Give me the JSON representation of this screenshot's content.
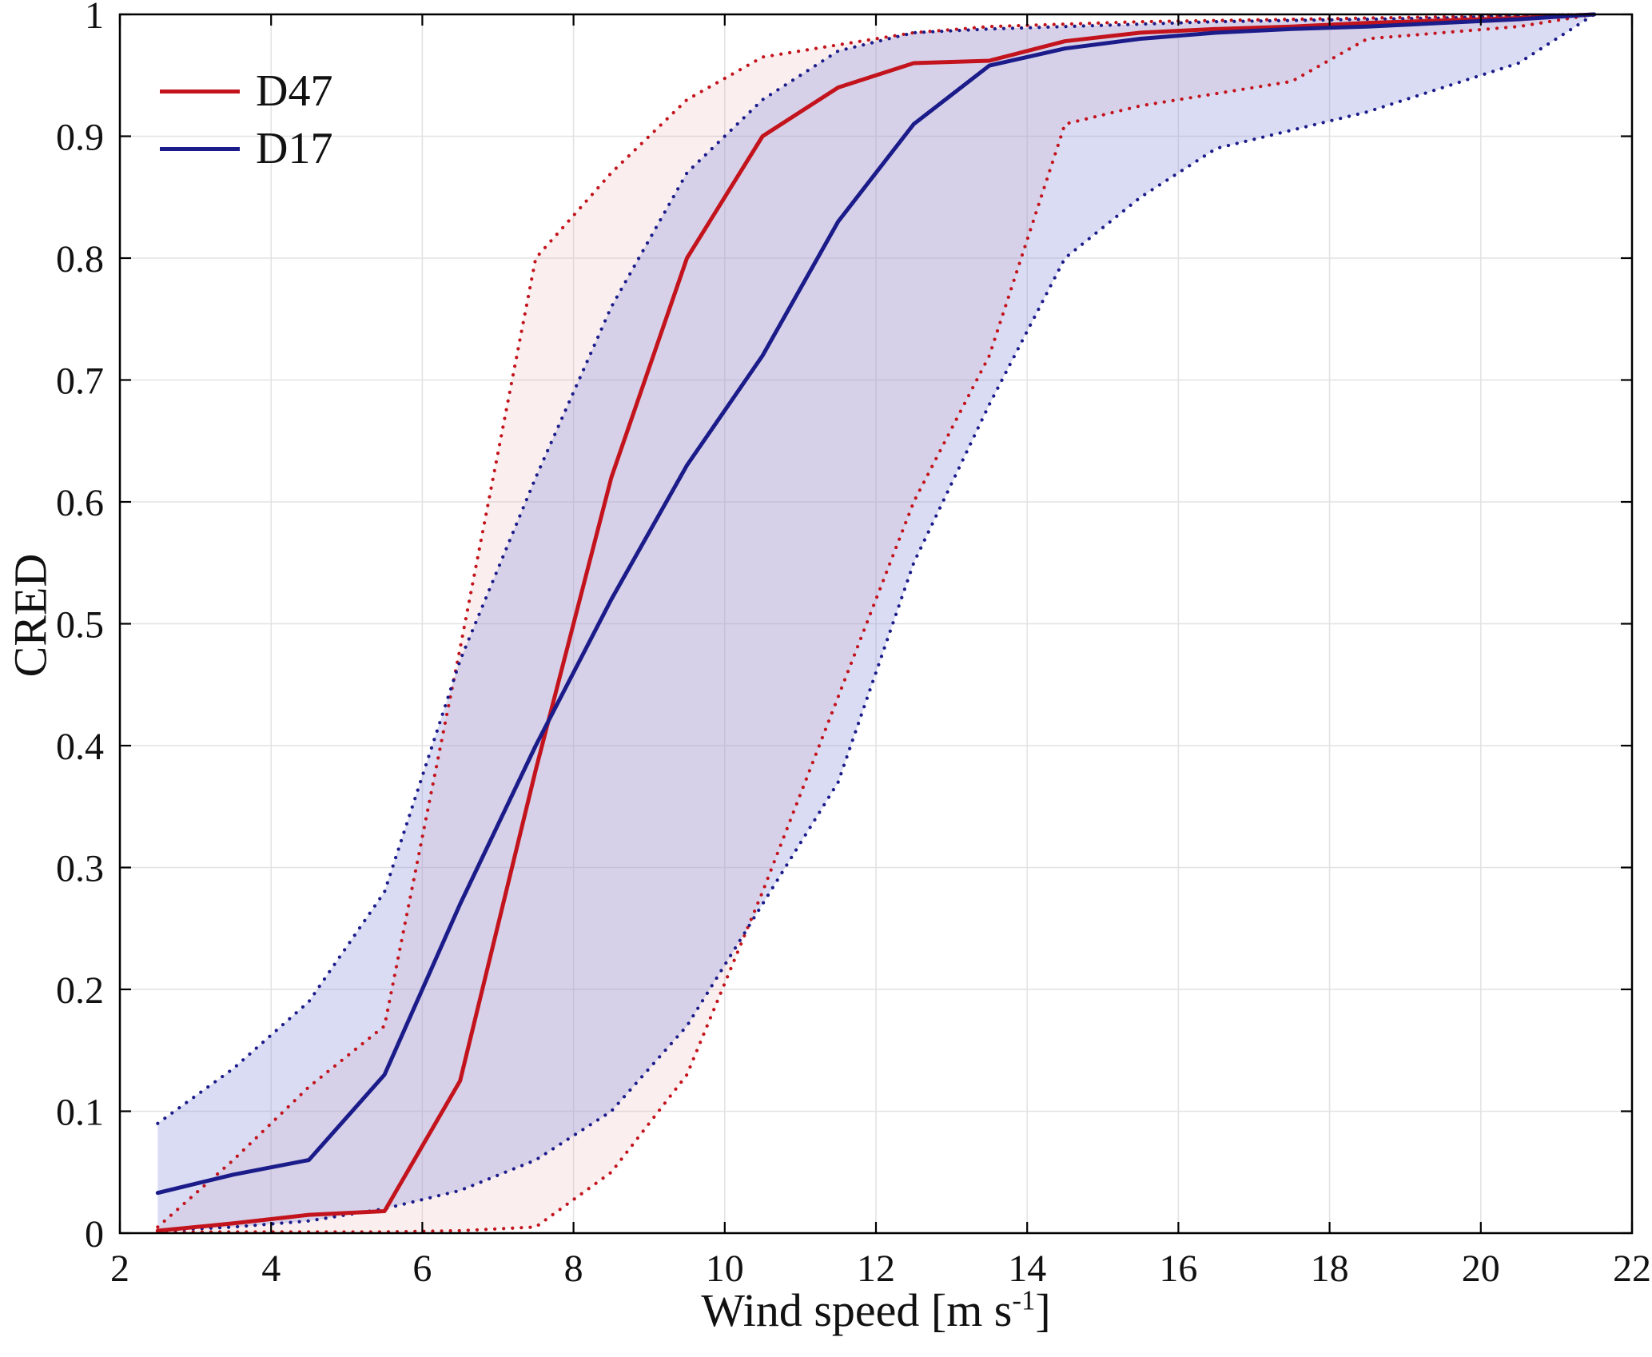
{
  "chart_data": {
    "type": "line",
    "title": "",
    "ylabel": "CRED",
    "xlabel_parts": {
      "prefix": "Wind speed [m s",
      "sup": "-1",
      "suffix": "]"
    },
    "xlim": [
      2,
      22
    ],
    "ylim": [
      0,
      1
    ],
    "x_ticks": [
      2,
      4,
      6,
      8,
      10,
      12,
      14,
      16,
      18,
      20,
      22
    ],
    "y_ticks": [
      0,
      0.1,
      0.2,
      0.3,
      0.4,
      0.5,
      0.6,
      0.7,
      0.8,
      0.9,
      1
    ],
    "y_tick_labels": [
      "0",
      "0.1",
      "0.2",
      "0.3",
      "0.4",
      "0.5",
      "0.6",
      "0.7",
      "0.8",
      "0.9",
      "1"
    ],
    "grid": true,
    "legend_position": "top-left",
    "grid_color": "#e2e2e2",
    "frame_color": "#000000",
    "x": [
      2.5,
      3.5,
      4.5,
      5.5,
      6.5,
      7.5,
      8.5,
      9.5,
      10.5,
      11.5,
      12.5,
      13.5,
      14.5,
      15.5,
      16.5,
      17.5,
      18.5,
      19.5,
      20.5,
      21.5
    ],
    "series": [
      {
        "name": "D47",
        "color": "#c3131c",
        "fill": "#e6a79e",
        "fill_opacity": 0.18,
        "median": [
          0.002,
          0.008,
          0.015,
          0.018,
          0.125,
          0.38,
          0.62,
          0.8,
          0.9,
          0.94,
          0.96,
          0.962,
          0.978,
          0.985,
          0.988,
          0.99,
          0.993,
          0.995,
          0.997,
          1.0
        ],
        "upper": [
          0.005,
          0.06,
          0.12,
          0.17,
          0.48,
          0.8,
          0.87,
          0.93,
          0.965,
          0.975,
          0.985,
          0.99,
          0.992,
          0.994,
          0.995,
          0.996,
          0.997,
          0.998,
          0.999,
          1.0
        ],
        "lower": [
          0.001,
          0.001,
          0.001,
          0.001,
          0.002,
          0.005,
          0.05,
          0.13,
          0.28,
          0.44,
          0.6,
          0.72,
          0.91,
          0.925,
          0.935,
          0.945,
          0.98,
          0.985,
          0.99,
          1.0
        ]
      },
      {
        "name": "D17",
        "color": "#1b1b8a",
        "fill": "#8d93dd",
        "fill_opacity": 0.32,
        "median": [
          0.033,
          0.048,
          0.06,
          0.13,
          0.27,
          0.4,
          0.52,
          0.63,
          0.72,
          0.83,
          0.91,
          0.958,
          0.972,
          0.98,
          0.985,
          0.988,
          0.99,
          0.993,
          0.996,
          1.0
        ],
        "upper": [
          0.09,
          0.135,
          0.19,
          0.28,
          0.47,
          0.62,
          0.76,
          0.87,
          0.93,
          0.97,
          0.985,
          0.988,
          0.99,
          0.992,
          0.994,
          0.995,
          0.996,
          0.997,
          0.999,
          1.0
        ],
        "lower": [
          0.002,
          0.005,
          0.01,
          0.02,
          0.035,
          0.06,
          0.1,
          0.17,
          0.27,
          0.37,
          0.55,
          0.68,
          0.8,
          0.85,
          0.89,
          0.905,
          0.92,
          0.94,
          0.96,
          1.0
        ]
      }
    ]
  }
}
